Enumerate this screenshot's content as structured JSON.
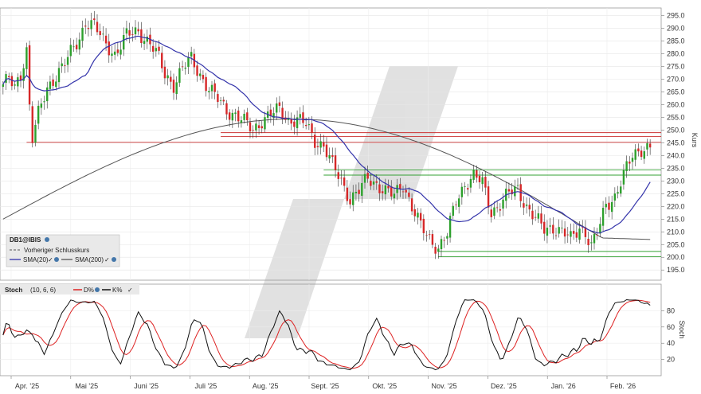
{
  "chart_data": [
    {
      "type": "candlestick",
      "symbol": "DB1@IBIS",
      "ylabel": "Kurs",
      "ylim": [
        191,
        298
      ],
      "yticks": [
        195,
        200,
        205,
        210,
        215,
        220,
        225,
        230,
        235,
        240,
        245,
        250,
        255,
        260,
        265,
        270,
        275,
        280,
        285,
        290,
        295
      ],
      "months": [
        "Apr. '25",
        "Mai '25",
        "Juni '25",
        "Juli '25",
        "Aug. '25",
        "Sept. '25",
        "Okt. '25",
        "Nov. '25",
        "Dez. '25",
        "Jan. '26",
        "Feb. '26"
      ],
      "close_anchors": [
        [
          0,
          268
        ],
        [
          2,
          270
        ],
        [
          4,
          266
        ],
        [
          6,
          272
        ],
        [
          8,
          282
        ],
        [
          9,
          260
        ],
        [
          10,
          247
        ],
        [
          12,
          256
        ],
        [
          15,
          266
        ],
        [
          18,
          272
        ],
        [
          22,
          278
        ],
        [
          26,
          286
        ],
        [
          28,
          293
        ],
        [
          31,
          291
        ],
        [
          34,
          285
        ],
        [
          38,
          280
        ],
        [
          42,
          287
        ],
        [
          46,
          289
        ],
        [
          50,
          284
        ],
        [
          53,
          278
        ],
        [
          55,
          272
        ],
        [
          58,
          268
        ],
        [
          61,
          274
        ],
        [
          64,
          278
        ],
        [
          67,
          272
        ],
        [
          70,
          266
        ],
        [
          73,
          262
        ],
        [
          76,
          258
        ],
        [
          79,
          256
        ],
        [
          82,
          253
        ],
        [
          85,
          250
        ],
        [
          88,
          254
        ],
        [
          91,
          256
        ],
        [
          94,
          258
        ],
        [
          97,
          254
        ],
        [
          100,
          254
        ],
        [
          103,
          252
        ],
        [
          106,
          246
        ],
        [
          109,
          244
        ],
        [
          112,
          236
        ],
        [
          115,
          230
        ],
        [
          118,
          223
        ],
        [
          121,
          226
        ],
        [
          124,
          231
        ],
        [
          127,
          229
        ],
        [
          130,
          226
        ],
        [
          133,
          224
        ],
        [
          136,
          229
        ],
        [
          139,
          220
        ],
        [
          142,
          212
        ],
        [
          145,
          207
        ],
        [
          148,
          204
        ],
        [
          151,
          209
        ],
        [
          154,
          222
        ],
        [
          157,
          229
        ],
        [
          160,
          232
        ],
        [
          163,
          229
        ],
        [
          166,
          218
        ],
        [
          169,
          221
        ],
        [
          172,
          225
        ],
        [
          175,
          227
        ],
        [
          178,
          220
        ],
        [
          181,
          215
        ],
        [
          184,
          211
        ],
        [
          187,
          212
        ],
        [
          190,
          210
        ],
        [
          193,
          207
        ],
        [
          196,
          212
        ],
        [
          198,
          210
        ],
        [
          200,
          204
        ],
        [
          202,
          209
        ],
        [
          205,
          221
        ],
        [
          208,
          224
        ],
        [
          211,
          232
        ],
        [
          214,
          240
        ],
        [
          217,
          243
        ],
        [
          220,
          243
        ]
      ],
      "horizontal_lines": [
        {
          "value": 249,
          "color": "#cc3333"
        },
        {
          "value": 247.5,
          "color": "#cc3333"
        },
        {
          "value": 245.2,
          "color": "#cc3333"
        },
        {
          "value": 234.3,
          "color": "#33a033"
        },
        {
          "value": 232.3,
          "color": "#33a033"
        },
        {
          "value": 202.3,
          "color": "#33a033"
        },
        {
          "value": 200.2,
          "color": "#33a033"
        }
      ],
      "legend": {
        "title": "DB1@IBIS",
        "items": [
          "Vorheriger Schlusskurs",
          "SMA(20)",
          "SMA(200)"
        ]
      },
      "colors": {
        "up": "#2ca02c",
        "down": "#d62728",
        "sma20": "#3333aa",
        "sma200": "#555555"
      }
    },
    {
      "type": "line",
      "indicator": "Stoch",
      "params": "(10, 6, 6)",
      "ylabel": "Stoch",
      "ylim": [
        0,
        100
      ],
      "yticks": [
        20,
        40,
        60,
        80
      ],
      "series": [
        {
          "name": "D%",
          "color": "#dd2222"
        },
        {
          "name": "K%",
          "color": "#111111"
        }
      ]
    }
  ],
  "ui": {
    "stoch_label": "Stoch",
    "stoch_params": "(10, 6, 6)",
    "d_label": "D%",
    "k_label": "K%",
    "check": "✓"
  }
}
